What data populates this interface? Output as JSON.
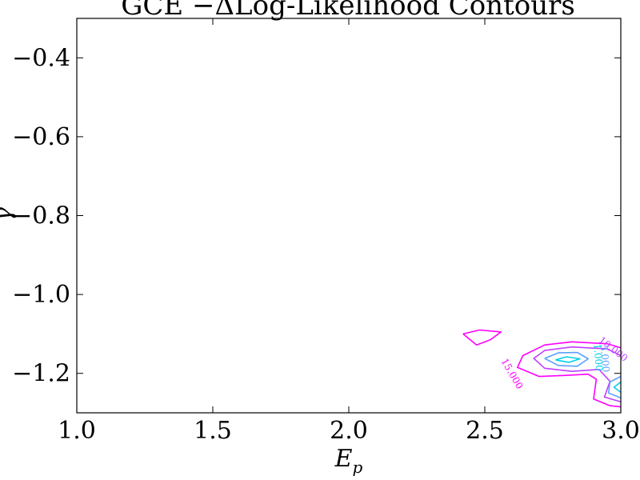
{
  "chart_data": {
    "type": "contour",
    "title": "GCE −ΔLog-Likelihood Contours",
    "xlabel": "E",
    "xlabel_sub": "p",
    "ylabel": "γ",
    "xlim": [
      1.0,
      3.0
    ],
    "ylim": [
      -1.3,
      -0.3
    ],
    "x_ticks": [
      1.0,
      1.5,
      2.0,
      2.5,
      3.0
    ],
    "x_tick_labels": [
      "1.0",
      "1.5",
      "2.0",
      "2.5",
      "3.0"
    ],
    "y_ticks": [
      -0.4,
      -0.6,
      -0.8,
      -1.0,
      -1.2
    ],
    "y_tick_labels": [
      "−0.4",
      "−0.6",
      "−0.8",
      "−1.0",
      "−1.2"
    ],
    "contours": [
      {
        "level": "15.000",
        "color": "#ff00ff",
        "points": [
          [
            2.42,
            -1.1
          ],
          [
            2.48,
            -1.09
          ],
          [
            2.56,
            -1.095
          ],
          [
            2.52,
            -1.115
          ],
          [
            2.47,
            -1.128
          ],
          [
            2.42,
            -1.1
          ]
        ]
      },
      {
        "level": "15.000",
        "color": "#ff00ff",
        "points": [
          [
            3.0,
            -1.135
          ],
          [
            2.95,
            -1.125
          ],
          [
            2.82,
            -1.12
          ],
          [
            2.72,
            -1.128
          ],
          [
            2.64,
            -1.155
          ],
          [
            2.62,
            -1.185
          ],
          [
            2.7,
            -1.208
          ],
          [
            2.8,
            -1.205
          ],
          [
            2.88,
            -1.202
          ],
          [
            2.91,
            -1.215
          ],
          [
            2.9,
            -1.265
          ],
          [
            2.96,
            -1.282
          ],
          [
            3.0,
            -1.285
          ]
        ]
      },
      {
        "level": "10.000",
        "color": "#c040ff",
        "points": [
          [
            3.0,
            -1.155
          ],
          [
            2.95,
            -1.138
          ],
          [
            2.82,
            -1.133
          ],
          [
            2.72,
            -1.142
          ],
          [
            2.68,
            -1.162
          ],
          [
            2.72,
            -1.187
          ],
          [
            2.82,
            -1.195
          ],
          [
            2.92,
            -1.19
          ],
          [
            2.96,
            -1.22
          ],
          [
            2.94,
            -1.26
          ],
          [
            3.0,
            -1.272
          ]
        ]
      },
      {
        "level": "3.000",
        "color": "#5aa0ff",
        "points": [
          [
            2.72,
            -1.162
          ],
          [
            2.77,
            -1.148
          ],
          [
            2.84,
            -1.147
          ],
          [
            2.88,
            -1.163
          ],
          [
            2.84,
            -1.182
          ],
          [
            2.77,
            -1.18
          ],
          [
            2.72,
            -1.162
          ]
        ]
      },
      {
        "level": "3.000",
        "color": "#5aa0ff",
        "points": [
          [
            3.0,
            -1.208
          ],
          [
            2.96,
            -1.222
          ],
          [
            2.955,
            -1.25
          ],
          [
            3.0,
            -1.262
          ]
        ]
      },
      {
        "level": "1.000",
        "color": "#00d0e8",
        "points": [
          [
            2.76,
            -1.166
          ],
          [
            2.8,
            -1.158
          ],
          [
            2.85,
            -1.163
          ],
          [
            2.81,
            -1.172
          ],
          [
            2.76,
            -1.166
          ]
        ]
      },
      {
        "level": "1.000",
        "color": "#00d0e8",
        "points": [
          [
            3.0,
            -1.222
          ],
          [
            2.975,
            -1.235
          ],
          [
            3.0,
            -1.248
          ]
        ]
      }
    ],
    "contour_labels": [
      {
        "text": "15.000",
        "x": 2.59,
        "y": -1.205,
        "angle": 60,
        "color": "#ff00ff"
      },
      {
        "text": "10.000",
        "x": 2.965,
        "y": -1.145,
        "angle": 38,
        "color": "#c040ff"
      },
      {
        "text": "3.000",
        "x": 2.93,
        "y": -1.163,
        "angle": 85,
        "color": "#5aa0ff"
      },
      {
        "text": "1.000",
        "x": 2.905,
        "y": -1.16,
        "angle": 85,
        "color": "#00d0e8"
      }
    ]
  }
}
